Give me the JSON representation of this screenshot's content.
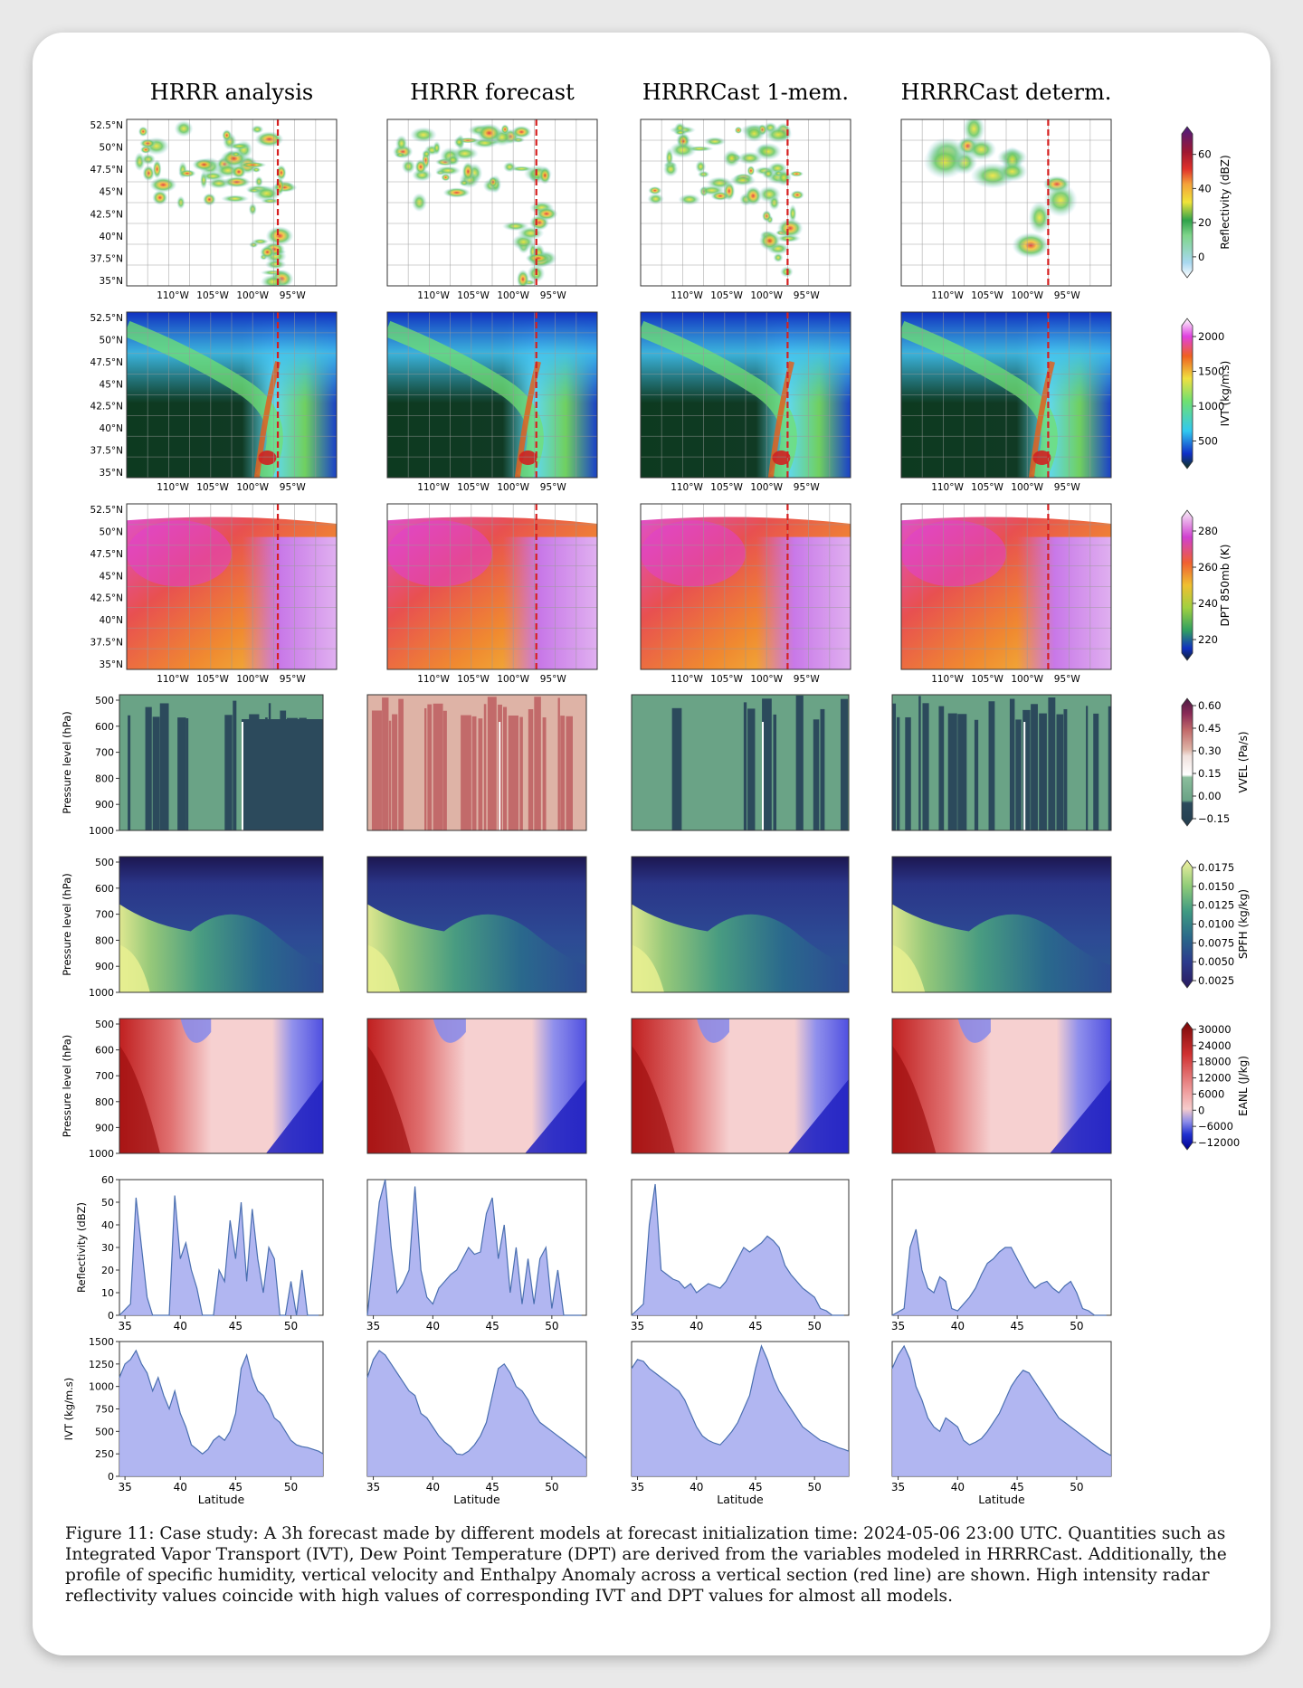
{
  "column_titles": [
    "HRRR analysis",
    "HRRR forecast",
    "HRRRCast 1-mem.",
    "HRRRCast determ."
  ],
  "map_lat_ticks": [
    "52.5°N",
    "50°N",
    "47.5°N",
    "45°N",
    "42.5°N",
    "40°N",
    "37.5°N",
    "35°N"
  ],
  "map_lon_ticks": [
    "110°W",
    "105°W",
    "100°W",
    "95°W"
  ],
  "colorbars": [
    {
      "label": "Reflectivity (dBZ)",
      "ticks": [
        "60",
        "40",
        "20",
        "0"
      ]
    },
    {
      "label": "IVT (kg/m.s)",
      "ticks": [
        "2000",
        "1500",
        "1000",
        "500"
      ]
    },
    {
      "label": "DPT 850mb (K)",
      "ticks": [
        "280",
        "260",
        "240",
        "220"
      ]
    },
    {
      "label": "VVEL (Pa/s)",
      "ticks": [
        "0.60",
        "0.45",
        "0.30",
        "0.15",
        "0.00",
        "−0.15"
      ]
    },
    {
      "label": "SPFH (kg/kg)",
      "ticks": [
        "0.0175",
        "0.0150",
        "0.0125",
        "0.0100",
        "0.0075",
        "0.0050",
        "0.0025"
      ]
    },
    {
      "label": "EANL (J/kg)",
      "ticks": [
        "30000",
        "24000",
        "18000",
        "12000",
        "6000",
        "0",
        "−6000",
        "−12000"
      ]
    }
  ],
  "section_ylabel": "Pressure level (hPa)",
  "section_yticks": [
    "500",
    "600",
    "700",
    "800",
    "900",
    "1000"
  ],
  "colors": {
    "red_line": "#d62020",
    "area_fill": "#a9aef0",
    "area_line": "#4a6fb0"
  },
  "chart_data": [
    {
      "type": "area",
      "ylabel": "Reflectivity (dBZ)",
      "xlabel": "",
      "xlim": [
        34.5,
        52.9
      ],
      "ylim": [
        0,
        60
      ],
      "x_ticks": [
        "35",
        "40",
        "45",
        "50"
      ],
      "y_ticks": [
        "0",
        "10",
        "20",
        "30",
        "40",
        "50",
        "60"
      ],
      "x": [
        34.5,
        35.5,
        36.0,
        36.5,
        37.0,
        37.5,
        38.0,
        38.5,
        39.0,
        39.5,
        40.0,
        40.5,
        41.0,
        41.5,
        42.0,
        42.5,
        43.0,
        43.5,
        44.0,
        44.5,
        45.0,
        45.5,
        46.0,
        46.5,
        47.0,
        47.5,
        48.0,
        48.5,
        49.0,
        49.5,
        50.0,
        50.5,
        51.0,
        51.5,
        52.0,
        52.5
      ],
      "series": [
        {
          "values": [
            0,
            5,
            52,
            30,
            8,
            0,
            0,
            0,
            0,
            53,
            25,
            32,
            20,
            12,
            0,
            0,
            0,
            20,
            15,
            42,
            25,
            50,
            15,
            47,
            25,
            10,
            30,
            25,
            0,
            0,
            15,
            0,
            20,
            0,
            0,
            0
          ]
        },
        {
          "values": [
            0,
            50,
            60,
            30,
            10,
            14,
            20,
            57,
            20,
            8,
            5,
            12,
            15,
            18,
            20,
            25,
            30,
            27,
            28,
            45,
            52,
            25,
            40,
            10,
            30,
            5,
            25,
            5,
            25,
            30,
            3,
            20,
            0,
            0,
            0,
            0
          ]
        },
        {
          "values": [
            0,
            5,
            40,
            58,
            20,
            18,
            16,
            15,
            12,
            14,
            10,
            12,
            14,
            13,
            12,
            15,
            20,
            25,
            30,
            28,
            30,
            32,
            35,
            33,
            30,
            22,
            18,
            15,
            12,
            10,
            8,
            3,
            2,
            0,
            0,
            0
          ]
        },
        {
          "values": [
            0,
            3,
            30,
            38,
            20,
            12,
            10,
            17,
            15,
            3,
            2,
            5,
            8,
            12,
            18,
            23,
            25,
            28,
            30,
            30,
            25,
            20,
            15,
            12,
            14,
            15,
            12,
            10,
            13,
            15,
            10,
            3,
            2,
            0,
            0,
            0
          ]
        }
      ]
    },
    {
      "type": "area",
      "ylabel": "IVT (kg/m.s)",
      "xlabel": "Latitude",
      "xlim": [
        34.5,
        52.9
      ],
      "ylim": [
        0,
        1500
      ],
      "x_ticks": [
        "35",
        "40",
        "45",
        "50"
      ],
      "y_ticks": [
        "0",
        "250",
        "500",
        "750",
        "1000",
        "1250",
        "1500"
      ],
      "x": [
        34.5,
        35.0,
        35.5,
        36.0,
        36.5,
        37.0,
        37.5,
        38.0,
        38.5,
        39.0,
        39.5,
        40.0,
        40.5,
        41.0,
        41.5,
        42.0,
        42.5,
        43.0,
        43.5,
        44.0,
        44.5,
        45.0,
        45.5,
        46.0,
        46.5,
        47.0,
        47.5,
        48.0,
        48.5,
        49.0,
        49.5,
        50.0,
        50.5,
        51.0,
        51.5,
        52.0,
        52.5,
        52.9
      ],
      "series": [
        {
          "values": [
            1100,
            1250,
            1300,
            1400,
            1250,
            1150,
            950,
            1100,
            900,
            750,
            950,
            700,
            550,
            350,
            300,
            250,
            300,
            400,
            450,
            400,
            500,
            700,
            1200,
            1350,
            1100,
            950,
            900,
            800,
            650,
            600,
            500,
            400,
            350,
            330,
            320,
            300,
            280,
            250
          ]
        },
        {
          "values": [
            1100,
            1300,
            1400,
            1350,
            1250,
            1150,
            1050,
            950,
            900,
            700,
            650,
            550,
            450,
            380,
            330,
            250,
            240,
            280,
            350,
            450,
            600,
            900,
            1200,
            1250,
            1150,
            1000,
            950,
            850,
            700,
            600,
            550,
            500,
            450,
            400,
            350,
            300,
            250,
            200
          ]
        },
        {
          "values": [
            1200,
            1300,
            1280,
            1200,
            1150,
            1100,
            1050,
            1000,
            950,
            850,
            700,
            550,
            450,
            400,
            370,
            350,
            420,
            500,
            600,
            750,
            900,
            1200,
            1450,
            1300,
            1100,
            950,
            850,
            750,
            650,
            550,
            500,
            450,
            400,
            380,
            350,
            320,
            300,
            280
          ]
        },
        {
          "values": [
            1200,
            1350,
            1450,
            1300,
            1000,
            850,
            650,
            550,
            500,
            650,
            600,
            550,
            400,
            350,
            380,
            420,
            500,
            600,
            700,
            850,
            1000,
            1100,
            1180,
            1150,
            1050,
            950,
            850,
            750,
            650,
            600,
            550,
            500,
            450,
            400,
            350,
            300,
            260,
            230
          ]
        }
      ]
    }
  ],
  "caption": "Figure 11: Case study: A 3h forecast made by different models at forecast initialization time: 2024-05-06 23:00 UTC. Quantities such as Integrated Vapor Transport (IVT), Dew Point Temperature (DPT) are derived from the variables modeled in HRRRCast. Additionally, the profile of specific humidity, vertical velocity and Enthalpy Anomaly across a vertical section (red line) are shown. High intensity radar reflectivity values coincide with high values of corresponding IVT and DPT values for almost all models."
}
